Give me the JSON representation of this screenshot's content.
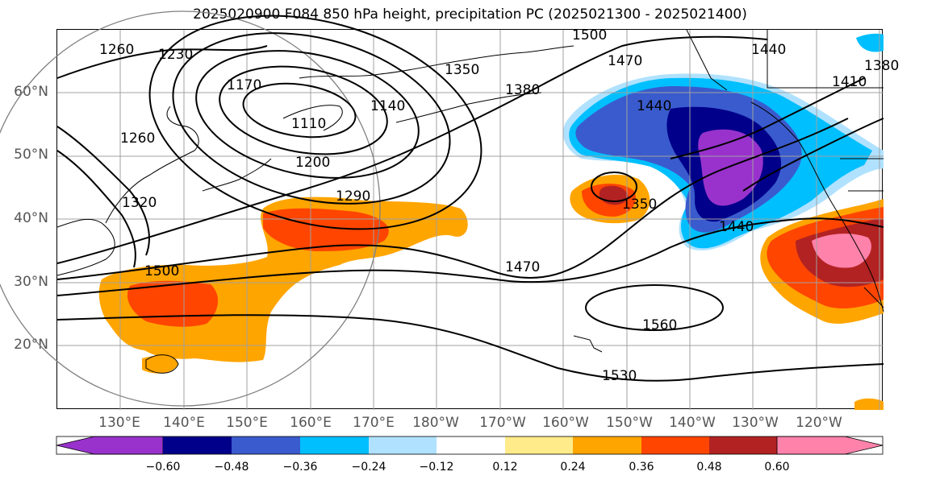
{
  "title": "2025020900 F084 850 hPa height, precipitation PC (2025021300 - 2025021400)",
  "lat_labels": [
    "60°N",
    "50°N",
    "40°N",
    "30°N",
    "20°N"
  ],
  "lon_labels": [
    "130°E",
    "140°E",
    "150°E",
    "160°E",
    "170°E",
    "180°W",
    "170°W",
    "160°W",
    "150°W",
    "140°W",
    "130°W",
    "120°W"
  ],
  "contour_labels": [
    "1260",
    "1230",
    "1170",
    "1110",
    "1140",
    "1350",
    "1380",
    "1500",
    "1470",
    "1440",
    "1410",
    "1440",
    "1380",
    "1260",
    "1320",
    "1200",
    "1290",
    "1350",
    "1440",
    "1470",
    "1500",
    "1560",
    "1530"
  ],
  "colorbar": {
    "ticks": [
      "−0.60",
      "−0.48",
      "−0.36",
      "−0.24",
      "−0.12",
      "0.12",
      "0.24",
      "0.36",
      "0.48",
      "0.60"
    ],
    "colors": [
      "#9932cc",
      "#00008b",
      "#3a5bcd",
      "#00bfff",
      "#b0e2ff",
      "#ffffff",
      "#ffeb8a",
      "#ffa500",
      "#ff4500",
      "#b22222",
      "#ff82ab"
    ]
  }
}
